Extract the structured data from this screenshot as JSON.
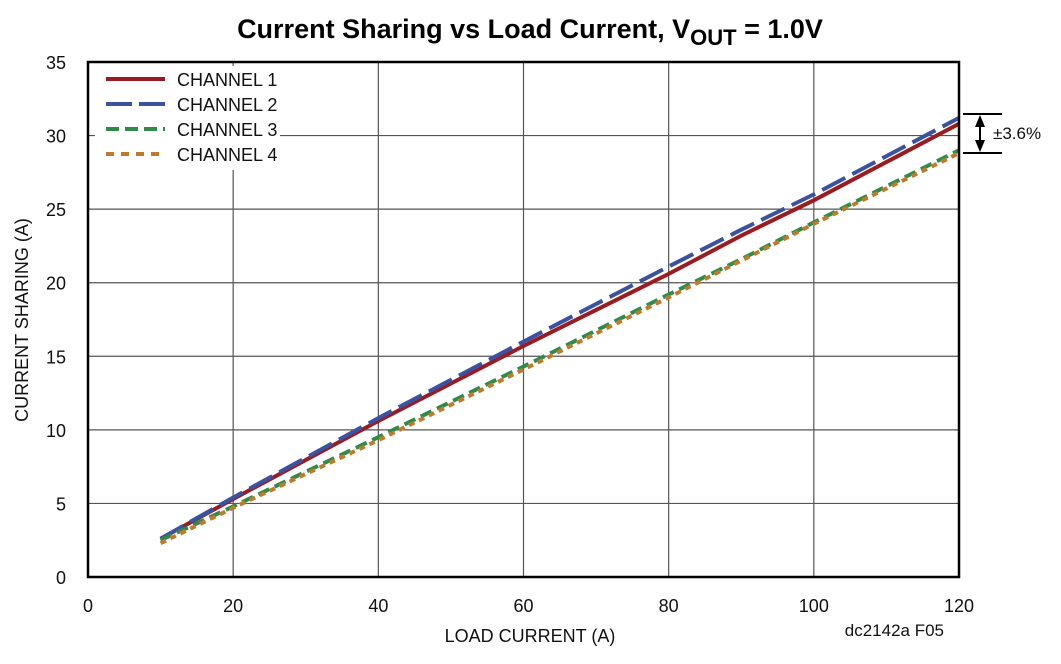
{
  "chart_data": {
    "type": "line",
    "title": "Current Sharing vs Load Current, V",
    "title_sub": "OUT",
    "title_tail": " = 1.0V",
    "xlabel": "LOAD CURRENT (A)",
    "ylabel": "CURRENT SHARING (A)",
    "xlim": [
      0,
      120
    ],
    "ylim": [
      0,
      35
    ],
    "xticks": [
      0,
      20,
      40,
      60,
      80,
      100,
      120
    ],
    "yticks": [
      0,
      5,
      10,
      15,
      20,
      25,
      30,
      35
    ],
    "grid": true,
    "legend_position": "top-left",
    "x": [
      10,
      20,
      40,
      60,
      80,
      90,
      100,
      120
    ],
    "series": [
      {
        "name": "CHANNEL 1",
        "color": "#9b1c20",
        "dash": "solid",
        "values": [
          2.6,
          5.3,
          10.6,
          15.7,
          20.6,
          23.2,
          25.6,
          30.8
        ]
      },
      {
        "name": "CHANNEL 2",
        "color": "#3a52a0",
        "dash": "long-dash",
        "values": [
          2.6,
          5.4,
          10.8,
          16.0,
          21.1,
          23.6,
          26.0,
          31.2
        ]
      },
      {
        "name": "CHANNEL 3",
        "color": "#2e8b4a",
        "dash": "dash",
        "values": [
          2.5,
          4.8,
          9.5,
          14.3,
          19.2,
          21.6,
          24.1,
          29.0
        ]
      },
      {
        "name": "CHANNEL 4",
        "color": "#c07a2c",
        "dash": "dot",
        "values": [
          2.3,
          4.7,
          9.3,
          14.1,
          19.0,
          21.5,
          24.0,
          28.8
        ]
      }
    ],
    "annotation": "±3.6%",
    "figure_id": "dc2142a F05"
  }
}
